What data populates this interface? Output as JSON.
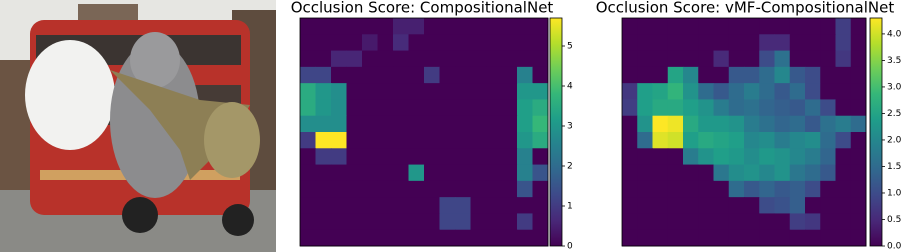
{
  "chart_data": [
    {
      "type": "heatmap",
      "title": "Occlusion Score:  CompositionalNet",
      "colormap": "viridis",
      "zlim": [
        0,
        5.7
      ],
      "cticks": [
        0,
        1,
        2,
        3,
        4,
        5
      ],
      "z": [
        [
          0,
          0,
          0,
          0,
          0,
          0,
          0.5,
          0.5,
          0,
          0,
          0,
          0,
          0,
          0,
          0,
          0
        ],
        [
          0,
          0,
          0,
          0,
          0.4,
          0,
          0.7,
          0,
          0,
          0,
          0,
          0,
          0,
          0,
          0,
          0
        ],
        [
          0,
          0,
          0.6,
          0.6,
          0,
          0,
          0,
          0,
          0,
          0,
          0,
          0,
          0,
          0,
          0,
          0
        ],
        [
          1.2,
          1.2,
          0,
          0,
          0,
          0,
          0,
          0,
          1.0,
          0,
          0,
          0,
          0,
          0,
          2.5,
          0
        ],
        [
          3.5,
          3,
          2.8,
          0,
          0,
          0,
          0,
          0,
          0,
          0,
          0,
          0,
          0,
          0,
          3,
          3
        ],
        [
          3.5,
          3,
          2.8,
          0,
          0,
          0,
          0,
          0,
          0,
          0,
          0,
          0,
          0,
          0,
          3.2,
          3.5
        ],
        [
          2.8,
          2.8,
          2.8,
          0,
          0,
          0,
          0,
          0,
          0,
          0,
          0,
          0,
          0,
          0,
          3.2,
          3.8
        ],
        [
          1,
          5.7,
          5.7,
          0,
          0,
          0,
          0,
          0,
          0,
          0,
          0,
          0,
          0,
          0,
          3,
          3.5
        ],
        [
          0,
          1,
          1,
          0,
          0,
          0,
          0,
          0,
          0,
          0,
          0,
          0,
          0,
          0,
          2.5,
          0
        ],
        [
          0,
          0,
          0,
          0,
          0,
          0,
          0,
          3,
          0,
          0,
          0,
          0,
          0,
          0,
          2.5,
          1.5
        ],
        [
          0,
          0,
          0,
          0,
          0,
          0,
          0,
          0,
          0,
          0,
          0,
          0,
          0,
          0,
          1.5,
          0
        ],
        [
          0,
          0,
          0,
          0,
          0,
          0,
          0,
          0,
          0,
          1.2,
          1.2,
          0,
          0,
          0,
          0,
          0
        ],
        [
          0,
          0,
          0,
          0,
          0,
          0,
          0,
          0,
          0,
          1.2,
          1.2,
          0,
          0,
          0,
          1,
          0
        ],
        [
          0,
          0,
          0,
          0,
          0,
          0,
          0,
          0,
          0,
          0,
          0,
          0,
          0,
          0,
          0,
          0
        ]
      ]
    },
    {
      "type": "heatmap",
      "title": "Occlusion Score:  vMF-CompositionalNet",
      "colormap": "viridis",
      "zlim": [
        0,
        4.3
      ],
      "cticks": [
        {
          "value": 0,
          "label": "0.0"
        },
        {
          "value": 0.5,
          "label": "0.5"
        },
        {
          "value": 1,
          "label": "1.0"
        },
        {
          "value": 1.5,
          "label": "1.5"
        },
        {
          "value": 2,
          "label": "2.0"
        },
        {
          "value": 2.5,
          "label": "2.5"
        },
        {
          "value": 3,
          "label": "3.0"
        },
        {
          "value": 3.5,
          "label": "3.5"
        },
        {
          "value": 4,
          "label": "4.0"
        }
      ],
      "z": [
        [
          0,
          0,
          0,
          0,
          0,
          0,
          0,
          0,
          0,
          0,
          0,
          0,
          0,
          0,
          0.8,
          0
        ],
        [
          0,
          0,
          0,
          0,
          0,
          0,
          0,
          0,
          0,
          0.5,
          0.5,
          0,
          0,
          0,
          0.8,
          0
        ],
        [
          0,
          0,
          0,
          0,
          0,
          0,
          0.5,
          0,
          0,
          1,
          1.6,
          0,
          0,
          0,
          0.7,
          0
        ],
        [
          0,
          0,
          0,
          2.5,
          2,
          0,
          0,
          1.2,
          1.2,
          1.5,
          2,
          1.2,
          1,
          0,
          0,
          0
        ],
        [
          0.7,
          2.4,
          2.5,
          2.8,
          2.2,
          1.5,
          1.2,
          1.5,
          1.8,
          1.5,
          1.2,
          1.5,
          1,
          0,
          0,
          0
        ],
        [
          0.8,
          2.4,
          2.6,
          2.6,
          2.4,
          2.2,
          1.8,
          1.5,
          1.6,
          1.4,
          1.3,
          1.2,
          1.5,
          1,
          0,
          0
        ],
        [
          0,
          2.2,
          4.3,
          4.2,
          2.6,
          2.3,
          2.3,
          2.2,
          1.8,
          1.6,
          1.4,
          1.5,
          1.2,
          1.6,
          1.8,
          1.5
        ],
        [
          0,
          1.5,
          4.1,
          4,
          2.4,
          2.6,
          2.5,
          2.4,
          2,
          2.1,
          1.8,
          2,
          2.1,
          1.5,
          1,
          0
        ],
        [
          0,
          0,
          0,
          0,
          1.8,
          2.2,
          2.4,
          2.3,
          2.1,
          2.3,
          2.2,
          2,
          1.8,
          1.4,
          0,
          0
        ],
        [
          0,
          0,
          0,
          0,
          0,
          0,
          1.7,
          2.1,
          2.2,
          2,
          2.2,
          1.7,
          1.5,
          1.2,
          0,
          0
        ],
        [
          0,
          0,
          0,
          0,
          0,
          0,
          0,
          1.5,
          1.2,
          1.4,
          1.2,
          1.3,
          1,
          0,
          0,
          0
        ],
        [
          0,
          0,
          0,
          0,
          0,
          0,
          0,
          0,
          0,
          1,
          1.1,
          1.3,
          0,
          0,
          0,
          0
        ],
        [
          0,
          0,
          0,
          0,
          0,
          0,
          0,
          0,
          0,
          0,
          0,
          0.8,
          0.7,
          0,
          0,
          0
        ],
        [
          0,
          0,
          0,
          0,
          0,
          0,
          0,
          0,
          0,
          0,
          0,
          0,
          0,
          0,
          0,
          0
        ]
      ]
    }
  ]
}
